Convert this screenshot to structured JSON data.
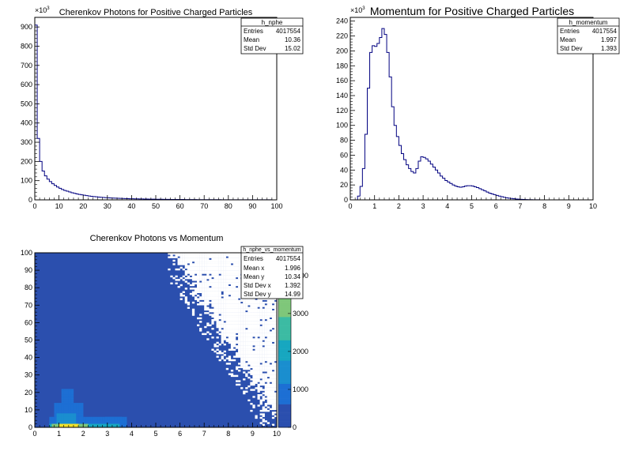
{
  "chart_data": [
    {
      "type": "histogram",
      "title": "Cherenkov Photons for Positive Charged Particles",
      "xlim": [
        0,
        100
      ],
      "ylim": [
        0,
        950000
      ],
      "y_multiplier": "×10",
      "y_multiplier_exp": "3",
      "x_ticks": [
        "0",
        "10",
        "20",
        "30",
        "40",
        "50",
        "60",
        "70",
        "80",
        "90",
        "100"
      ],
      "y_ticks": [
        "0",
        "100",
        "200",
        "300",
        "400",
        "500",
        "600",
        "700",
        "800",
        "900"
      ],
      "stats": {
        "name": "h_nphe",
        "rows": [
          {
            "label": "Entries",
            "value": "4017554"
          },
          {
            "label": "Mean",
            "value": "10.36"
          },
          {
            "label": "Std Dev",
            "value": "15.02"
          }
        ]
      },
      "bins": {
        "edges_start": 0,
        "bin_width": 1,
        "values": [
          910000,
          320000,
          200000,
          150000,
          125000,
          108000,
          95000,
          84000,
          75000,
          67000,
          60000,
          54000,
          49000,
          45000,
          41000,
          37000,
          34000,
          31000,
          28500,
          26000,
          24000,
          22000,
          20000,
          18500,
          17000,
          15700,
          14500,
          13400,
          12400,
          11500,
          10700,
          10000,
          9300,
          8700,
          8100,
          7600,
          7100,
          6700,
          6300,
          5900,
          5600,
          5300,
          5000,
          4700,
          4500,
          4200,
          4000,
          3800,
          3600,
          3400,
          3200,
          3000,
          2900,
          2700,
          2600,
          2400,
          2300,
          2200,
          2100,
          2000,
          1900,
          1800,
          1700,
          1600,
          1500,
          1400,
          1300,
          1250,
          1200,
          1150,
          1100,
          1050,
          1000,
          950,
          900,
          850,
          800,
          750,
          700,
          650,
          600,
          580,
          560,
          540,
          520,
          500,
          480,
          460,
          440,
          420,
          400,
          380,
          360,
          340,
          320,
          300,
          280,
          260,
          240,
          220
        ]
      }
    },
    {
      "type": "histogram",
      "title": "Momentum for Positive Charged Particles",
      "xlim": [
        0,
        10
      ],
      "ylim": [
        0,
        245000
      ],
      "y_multiplier": "×10",
      "y_multiplier_exp": "3",
      "x_ticks": [
        "0",
        "1",
        "2",
        "3",
        "4",
        "5",
        "6",
        "7",
        "8",
        "9",
        "10"
      ],
      "y_ticks": [
        "0",
        "20",
        "40",
        "60",
        "80",
        "100",
        "120",
        "140",
        "160",
        "180",
        "200",
        "220",
        "240"
      ],
      "stats": {
        "name": "h_momentum",
        "rows": [
          {
            "label": "Entries",
            "value": "4017554"
          },
          {
            "label": "Mean",
            "value": "1.997"
          },
          {
            "label": "Std Dev",
            "value": "1.393"
          }
        ]
      },
      "bins": {
        "edges_start": 0,
        "bin_width": 0.1,
        "values": [
          0,
          0,
          0,
          5000,
          18000,
          42000,
          88000,
          150000,
          198000,
          207000,
          206000,
          210000,
          218000,
          230000,
          222000,
          198000,
          165000,
          125000,
          100000,
          85000,
          73000,
          62000,
          54000,
          47000,
          42000,
          38000,
          36000,
          42000,
          52000,
          58000,
          57000,
          55000,
          52000,
          48000,
          44000,
          40000,
          36000,
          32000,
          29000,
          26000,
          24000,
          22000,
          20000,
          18500,
          17500,
          17000,
          17500,
          18500,
          19000,
          19000,
          18500,
          17500,
          16500,
          15000,
          13500,
          12000,
          10500,
          9000,
          8000,
          7000,
          6000,
          5000,
          4200,
          3500,
          2800,
          2200,
          1800,
          1400,
          1100,
          900,
          700,
          500,
          400,
          300,
          200,
          150,
          100,
          80,
          50,
          30,
          20,
          0,
          0,
          0,
          0,
          0,
          0,
          0,
          0,
          0,
          0,
          0,
          0,
          0,
          0,
          0,
          0,
          0,
          0,
          0
        ]
      }
    },
    {
      "type": "heatmap",
      "title": "Cherenkov Photons vs Momentum",
      "xlim": [
        0,
        10
      ],
      "ylim": [
        0,
        100
      ],
      "x_ticks": [
        "0",
        "1",
        "2",
        "3",
        "4",
        "5",
        "6",
        "7",
        "8",
        "9",
        "10"
      ],
      "y_ticks": [
        "0",
        "10",
        "20",
        "30",
        "40",
        "50",
        "60",
        "70",
        "80",
        "90",
        "100"
      ],
      "z_ticks": [
        "0",
        "1000",
        "2000",
        "3000",
        "4000"
      ],
      "z_tick_labels_shown": [
        "0",
        "1000",
        "2000",
        "3000",
        "4000"
      ],
      "stats": {
        "name": "h_nphe_vs_momentum",
        "rows": [
          {
            "label": "Entries",
            "value": "4017554"
          },
          {
            "label": "Mean x",
            "value": "1.996"
          },
          {
            "label": "Mean y",
            "value": "10.34"
          },
          {
            "label": "Std Dev x",
            "value": "1.392"
          },
          {
            "label": "Std Dev y",
            "value": "14.99"
          }
        ]
      },
      "colors": {
        "base": "#2b4fae",
        "empty": "#ffffff",
        "palette": [
          "#2b4fae",
          "#1d6fd4",
          "#1a8ecf",
          "#17a7c0",
          "#3cbba3",
          "#7fc77a",
          "#c0c356",
          "#f3e22a"
        ]
      }
    }
  ]
}
